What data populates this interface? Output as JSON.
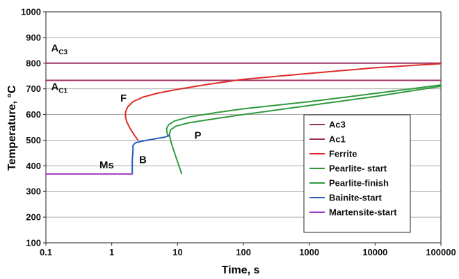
{
  "chart_data": {
    "type": "line",
    "title": "",
    "xlabel": "Time, s",
    "ylabel": "Temperature, °C",
    "xscale": "log",
    "xlim": [
      0.1,
      100000
    ],
    "ylim": [
      100,
      1000
    ],
    "x_ticks": [
      "0.1",
      "1",
      "10",
      "100",
      "1000",
      "10000",
      "100000"
    ],
    "y_ticks": [
      "100",
      "200",
      "300",
      "400",
      "500",
      "600",
      "700",
      "800",
      "900",
      "1000"
    ],
    "grid": "horizontal",
    "legend_position": "lower-right",
    "annotations": [
      {
        "text": "A",
        "sub": "C3",
        "x": 0.12,
        "y": 845
      },
      {
        "text": "A",
        "sub": "C1",
        "x": 0.12,
        "y": 695
      },
      {
        "text": "F",
        "x": 1.35,
        "y": 650
      },
      {
        "text": "P",
        "x": 18,
        "y": 505
      },
      {
        "text": "B",
        "x": 2.6,
        "y": 410
      },
      {
        "text": "Ms",
        "x": 0.65,
        "y": 390
      }
    ],
    "series": [
      {
        "name": "Ac3",
        "color": "#9b3060",
        "x": [
          0.1,
          100000
        ],
        "y": [
          800,
          800
        ]
      },
      {
        "name": "Ac1",
        "color": "#9b3060",
        "x": [
          0.1,
          100000
        ],
        "y": [
          733,
          733
        ]
      },
      {
        "name": "Ferrite",
        "color": "#e02a2a",
        "x": [
          2.5,
          2.2,
          1.9,
          1.7,
          1.62,
          1.62,
          1.75,
          2.1,
          3,
          5,
          10,
          30,
          100,
          1000,
          10000,
          100000
        ],
        "y": [
          500,
          520,
          545,
          570,
          590,
          610,
          630,
          650,
          668,
          683,
          698,
          718,
          737,
          760,
          782,
          798
        ]
      },
      {
        "name": "Pearlite- start",
        "color": "#2e9a3c",
        "x": [
          7.2,
          6.9,
          6.8,
          7.3,
          9,
          15,
          40,
          100,
          1000,
          10000,
          100000
        ],
        "y": [
          515,
          530,
          545,
          560,
          575,
          590,
          608,
          622,
          650,
          682,
          715
        ]
      },
      {
        "name": "Pearlite-finish",
        "color": "#2e9a3c",
        "x": [
          11.5,
          10.5,
          9,
          8,
          7.5,
          7.8,
          9.5,
          15,
          40,
          100,
          1000,
          10000,
          100000
        ],
        "y": [
          370,
          400,
          450,
          490,
          520,
          540,
          555,
          568,
          585,
          600,
          635,
          670,
          710
        ]
      },
      {
        "name": "Bainite-start",
        "color": "#2a5cc0",
        "x": [
          2.05,
          2.05,
          2.1,
          2.1,
          2.3,
          3.0,
          4.5,
          6.5,
          7.5
        ],
        "y": [
          370,
          420,
          460,
          480,
          490,
          497,
          505,
          512,
          520
        ]
      },
      {
        "name": "Martensite-start",
        "color": "#a33ac6",
        "x": [
          0.1,
          2.05
        ],
        "y": [
          368,
          368
        ]
      }
    ]
  }
}
